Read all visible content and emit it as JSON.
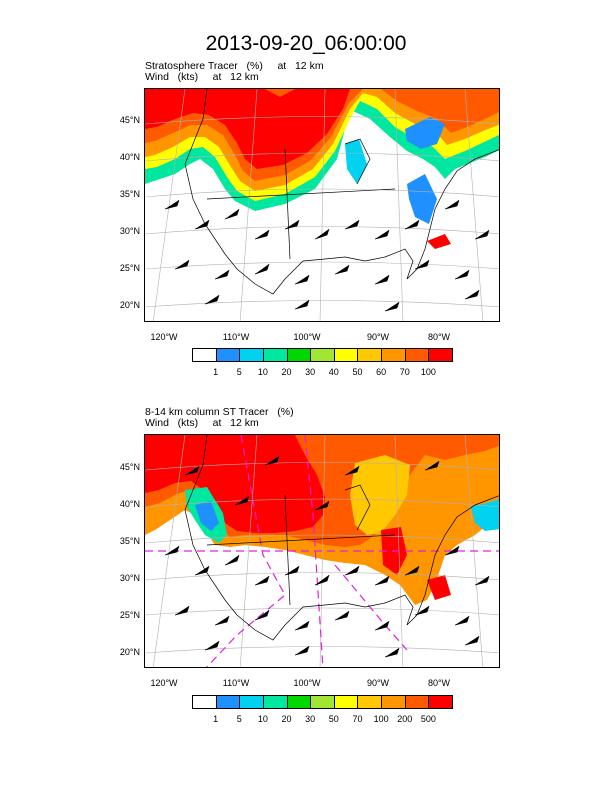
{
  "title": "2013-09-20_06:00:00",
  "panels": [
    {
      "title_line1": "Stratosphere Tracer   (%)     at   12 km",
      "title_line2": "Wind   (kts)     at   12 km",
      "lat_labels": [
        "45°N",
        "40°N",
        "35°N",
        "30°N",
        "25°N",
        "20°N"
      ],
      "lon_labels": [
        "120°W",
        "110°W",
        "100°W",
        "90°W",
        "80°W"
      ],
      "legend_labels": [
        "1",
        "5",
        "10",
        "20",
        "30",
        "40",
        "50",
        "60",
        "70",
        "100"
      ]
    },
    {
      "title_line1": "8-14 km column ST Tracer   (%)",
      "title_line2": "Wind   (kts)     at   12 km",
      "lat_labels": [
        "45°N",
        "40°N",
        "35°N",
        "30°N",
        "25°N",
        "20°N"
      ],
      "lon_labels": [
        "120°W",
        "110°W",
        "100°W",
        "90°W",
        "80°W"
      ],
      "legend_labels": [
        "1",
        "5",
        "10",
        "20",
        "30",
        "50",
        "70",
        "100",
        "200",
        "500"
      ]
    }
  ],
  "colorbar": [
    "#ffffff",
    "#1e90ff",
    "#00d2f0",
    "#00e8a0",
    "#00d700",
    "#a0e632",
    "#ffff00",
    "#ffc800",
    "#ff9600",
    "#ff5a00",
    "#ff0000"
  ]
}
